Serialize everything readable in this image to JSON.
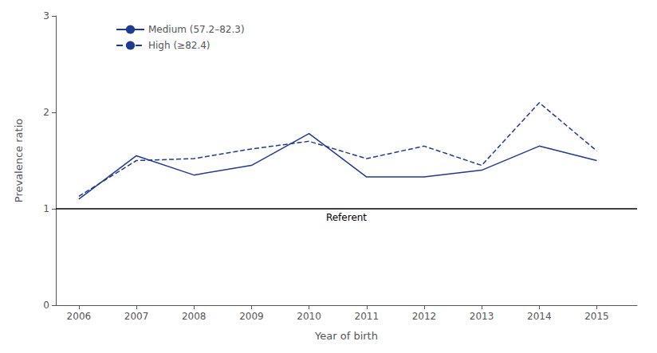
{
  "chart_data": {
    "type": "line",
    "x": [
      2006,
      2007,
      2008,
      2009,
      2010,
      2011,
      2012,
      2013,
      2014,
      2015
    ],
    "series": [
      {
        "name": "Medium (57.2–82.3)",
        "color": "#1F3A93",
        "line_style": "solid",
        "values": [
          1.1,
          1.55,
          1.35,
          1.45,
          1.78,
          1.33,
          1.33,
          1.4,
          1.65,
          1.5
        ]
      },
      {
        "name": "High (≥82.4)",
        "color": "#1F3A93",
        "line_style": "dashed",
        "values": [
          1.13,
          1.5,
          1.52,
          1.62,
          1.7,
          1.52,
          1.65,
          1.45,
          2.1,
          1.6
        ]
      }
    ],
    "xlabel": "Year of birth",
    "ylabel": "Prevalence ratio",
    "xlim": [
      2005.6,
      2015.7
    ],
    "xticks": [
      2006,
      2007,
      2008,
      2009,
      2010,
      2011,
      2012,
      2013,
      2014,
      2015
    ],
    "ylim": [
      0,
      3
    ],
    "yticks": [
      0,
      1,
      2,
      3
    ],
    "annotations": [
      {
        "text": "Referent",
        "y": 1.0,
        "color": "#000000"
      }
    ],
    "grid": false,
    "legend": "upper left"
  }
}
